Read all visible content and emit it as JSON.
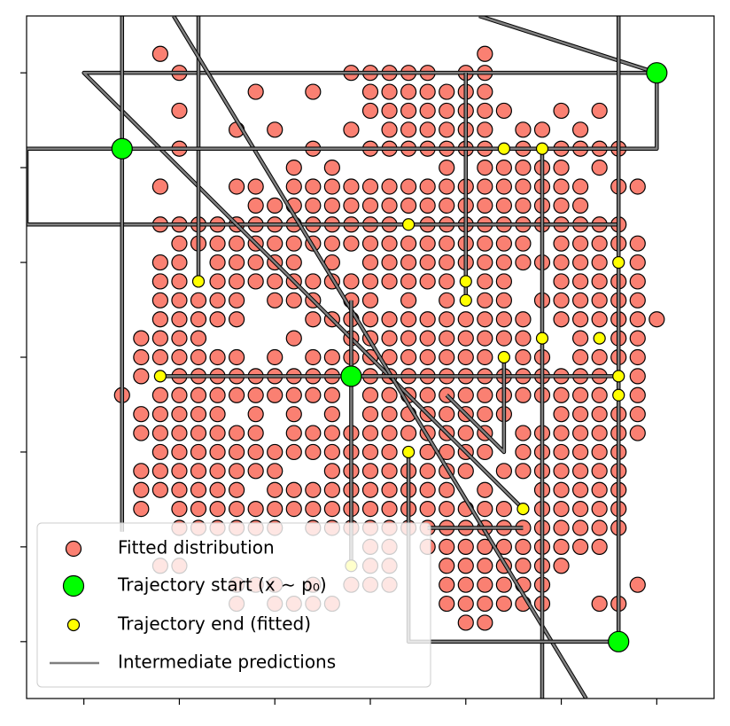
{
  "chart_data": {
    "type": "scatter",
    "xlim": [
      -3,
      33
    ],
    "ylim": [
      -3,
      33
    ],
    "xticks": [
      0,
      5,
      10,
      15,
      20,
      25,
      30
    ],
    "yticks": [
      0,
      5,
      10,
      15,
      20,
      25,
      30
    ],
    "legend": "lower left",
    "series": [
      {
        "name": "Fitted distribution",
        "color": "#fa8072",
        "x": [
          4,
          21,
          5,
          14,
          15,
          16,
          17,
          18,
          20,
          21,
          9,
          12,
          15,
          16,
          17,
          18,
          19,
          20,
          21,
          5,
          15,
          16,
          17,
          18,
          19,
          20,
          21,
          22,
          25,
          27,
          8,
          10,
          14,
          16,
          17,
          18,
          19,
          20,
          21,
          23,
          24,
          26,
          5,
          12,
          15,
          16,
          17,
          18,
          19,
          20,
          21,
          23,
          25,
          26,
          27,
          28,
          11,
          13,
          19,
          21,
          22,
          23,
          24,
          25,
          27,
          4,
          8,
          9,
          11,
          12,
          13,
          14,
          15,
          16,
          17,
          18,
          19,
          20,
          21,
          22,
          23,
          24,
          25,
          26,
          28,
          29,
          9,
          10,
          11,
          12,
          13,
          14,
          15,
          16,
          17,
          18,
          19,
          20,
          21,
          22,
          23,
          24,
          25,
          26,
          4,
          5,
          6,
          7,
          8,
          9,
          10,
          11,
          12,
          13,
          14,
          15,
          16,
          18,
          19,
          20,
          21,
          22,
          23,
          24,
          25,
          26,
          27,
          28,
          5,
          6,
          7,
          8,
          9,
          10,
          11,
          12,
          13,
          14,
          15,
          16,
          17,
          18,
          19,
          20,
          21,
          22,
          23,
          25,
          26,
          27,
          28,
          29,
          4,
          5,
          7,
          8,
          9,
          10,
          11,
          13,
          15,
          16,
          17,
          18,
          19,
          20,
          21,
          22,
          23,
          24,
          25,
          26,
          27,
          29,
          4,
          5,
          7,
          8,
          9,
          10,
          11,
          12,
          13,
          14,
          15,
          16,
          17,
          18,
          19,
          21,
          22,
          25,
          26,
          27,
          28,
          29,
          4,
          5,
          6,
          7,
          8,
          10,
          11,
          12,
          14,
          15,
          17,
          19,
          21,
          22,
          24,
          25,
          26,
          27,
          28,
          29,
          4,
          5,
          6,
          7,
          8,
          12,
          13,
          14,
          15,
          16,
          17,
          18,
          19,
          20,
          21,
          22,
          23,
          25,
          26,
          27,
          28,
          29,
          30,
          3,
          4,
          5,
          6,
          11,
          14,
          15,
          16,
          17,
          18,
          19,
          20,
          21,
          22,
          23,
          26,
          28,
          29,
          3,
          4,
          5,
          6,
          7,
          8,
          10,
          12,
          13,
          14,
          15,
          16,
          17,
          18,
          19,
          20,
          21,
          23,
          24,
          26,
          27,
          28,
          29,
          3,
          5,
          6,
          7,
          8,
          9,
          10,
          11,
          12,
          13,
          15,
          16,
          17,
          18,
          19,
          20,
          21,
          22,
          23,
          24,
          25,
          26,
          27,
          29,
          2,
          4,
          5,
          6,
          7,
          8,
          9,
          10,
          11,
          12,
          13,
          15,
          16,
          17,
          18,
          19,
          20,
          21,
          22,
          23,
          24,
          25,
          26,
          27,
          29,
          3,
          4,
          5,
          6,
          7,
          9,
          11,
          13,
          15,
          16,
          17,
          18,
          19,
          20,
          21,
          22,
          25,
          26,
          27,
          28,
          29,
          3,
          4,
          5,
          6,
          7,
          8,
          9,
          11,
          12,
          13,
          14,
          15,
          16,
          17,
          18,
          19,
          20,
          21,
          23,
          24,
          25,
          26,
          27,
          28,
          29,
          4,
          5,
          6,
          7,
          8,
          9,
          10,
          11,
          12,
          13,
          14,
          15,
          16,
          18,
          19,
          20,
          21,
          23,
          24,
          25,
          26,
          27,
          28,
          3,
          4,
          5,
          6,
          7,
          8,
          9,
          10,
          13,
          14,
          15,
          16,
          17,
          18,
          19,
          20,
          22,
          23,
          24,
          25,
          26,
          27,
          28,
          3,
          4,
          5,
          6,
          7,
          8,
          10,
          11,
          12,
          13,
          14,
          15,
          16,
          17,
          18,
          19,
          21,
          24,
          25,
          26,
          27,
          28,
          3,
          5,
          6,
          7,
          8,
          9,
          10,
          11,
          12,
          13,
          14,
          15,
          16,
          17,
          18,
          19,
          20,
          21,
          22,
          24,
          25,
          26,
          27,
          28,
          5,
          6,
          7,
          8,
          9,
          10,
          12,
          13,
          14,
          15,
          16,
          17,
          18,
          19,
          20,
          21,
          22,
          23,
          24,
          25,
          26,
          27,
          28,
          15,
          16,
          18,
          19,
          20,
          21,
          22,
          23,
          24,
          25,
          26,
          27,
          4,
          5,
          15,
          16,
          19,
          20,
          21,
          22,
          23,
          24,
          25,
          8,
          9,
          10,
          12,
          14,
          15,
          16,
          19,
          20,
          21,
          22,
          23,
          24,
          29,
          8,
          10,
          11,
          12,
          13,
          19,
          20,
          21,
          22,
          23,
          24,
          27,
          28,
          20,
          21
        ],
        "y": [
          31,
          31,
          30,
          30,
          30,
          30,
          30,
          30,
          30,
          30,
          29,
          29,
          29,
          29,
          29,
          29,
          29,
          29,
          29,
          28,
          28,
          28,
          28,
          28,
          28,
          28,
          28,
          28,
          28,
          28,
          27,
          27,
          27,
          27,
          27,
          27,
          27,
          27,
          27,
          27,
          27,
          27,
          26,
          26,
          26,
          26,
          26,
          26,
          26,
          26,
          26,
          26,
          26,
          26,
          26,
          26,
          25,
          25,
          25,
          25,
          25,
          25,
          25,
          25,
          25,
          24,
          24,
          24,
          24,
          24,
          24,
          24,
          24,
          24,
          24,
          24,
          24,
          24,
          24,
          24,
          24,
          24,
          24,
          24,
          24,
          24,
          23,
          23,
          23,
          23,
          23,
          23,
          23,
          23,
          23,
          23,
          23,
          23,
          23,
          23,
          23,
          23,
          23,
          23,
          22,
          22,
          22,
          22,
          22,
          22,
          22,
          22,
          22,
          22,
          22,
          22,
          22,
          22,
          22,
          22,
          22,
          22,
          22,
          22,
          22,
          22,
          22,
          22,
          21,
          21,
          21,
          21,
          21,
          21,
          21,
          21,
          21,
          21,
          21,
          21,
          21,
          21,
          21,
          21,
          21,
          21,
          21,
          21,
          21,
          21,
          21,
          21,
          20,
          20,
          20,
          20,
          20,
          20,
          20,
          20,
          20,
          20,
          20,
          20,
          20,
          20,
          20,
          20,
          20,
          20,
          20,
          20,
          20,
          20,
          19,
          19,
          19,
          19,
          19,
          19,
          19,
          19,
          19,
          19,
          19,
          19,
          19,
          19,
          19,
          19,
          19,
          19,
          19,
          19,
          19,
          19,
          18,
          18,
          18,
          18,
          18,
          18,
          18,
          18,
          18,
          18,
          18,
          18,
          18,
          18,
          18,
          18,
          18,
          18,
          18,
          18,
          17,
          17,
          17,
          17,
          17,
          17,
          17,
          17,
          17,
          17,
          17,
          17,
          17,
          17,
          17,
          17,
          17,
          17,
          17,
          17,
          17,
          17,
          17,
          16,
          16,
          16,
          16,
          16,
          16,
          16,
          16,
          16,
          16,
          16,
          16,
          16,
          16,
          16,
          16,
          16,
          16,
          15,
          15,
          15,
          15,
          15,
          15,
          15,
          15,
          15,
          15,
          15,
          15,
          15,
          15,
          15,
          15,
          15,
          15,
          15,
          15,
          15,
          15,
          15,
          14,
          14,
          14,
          14,
          14,
          14,
          14,
          14,
          14,
          14,
          14,
          14,
          14,
          14,
          14,
          14,
          14,
          14,
          14,
          14,
          14,
          14,
          14,
          14,
          13,
          13,
          13,
          13,
          13,
          13,
          13,
          13,
          13,
          13,
          13,
          13,
          13,
          13,
          13,
          13,
          13,
          13,
          13,
          13,
          13,
          13,
          13,
          13,
          13,
          12,
          12,
          12,
          12,
          12,
          12,
          12,
          12,
          12,
          12,
          12,
          12,
          12,
          12,
          12,
          12,
          12,
          12,
          12,
          12,
          12,
          11,
          11,
          11,
          11,
          11,
          11,
          11,
          11,
          11,
          11,
          11,
          11,
          11,
          11,
          11,
          11,
          11,
          11,
          11,
          11,
          11,
          11,
          11,
          11,
          11,
          10,
          10,
          10,
          10,
          10,
          10,
          10,
          10,
          10,
          10,
          10,
          10,
          10,
          10,
          10,
          10,
          10,
          10,
          10,
          10,
          10,
          10,
          10,
          9,
          9,
          9,
          9,
          9,
          9,
          9,
          9,
          9,
          9,
          9,
          9,
          9,
          9,
          9,
          9,
          9,
          9,
          9,
          9,
          9,
          9,
          9,
          8,
          8,
          8,
          8,
          8,
          8,
          8,
          8,
          8,
          8,
          8,
          8,
          8,
          8,
          8,
          8,
          8,
          8,
          8,
          8,
          8,
          8,
          7,
          7,
          7,
          7,
          7,
          7,
          7,
          7,
          7,
          7,
          7,
          7,
          7,
          7,
          7,
          7,
          7,
          7,
          7,
          7,
          7,
          7,
          7,
          7,
          6,
          6,
          6,
          6,
          6,
          6,
          6,
          6,
          6,
          6,
          6,
          6,
          6,
          6,
          6,
          6,
          6,
          6,
          6,
          6,
          6,
          6,
          6,
          5,
          5,
          5,
          5,
          5,
          5,
          5,
          5,
          5,
          5,
          5,
          5,
          4,
          4,
          4,
          4,
          4,
          4,
          4,
          4,
          4,
          4,
          4,
          3,
          3,
          3,
          3,
          3,
          3,
          3,
          3,
          3,
          3,
          3,
          3,
          3,
          3,
          2,
          2,
          2,
          2,
          2,
          2,
          2,
          2,
          2,
          2,
          2,
          2,
          2,
          1,
          1
        ]
      },
      {
        "name": "Trajectory start (x ∼ p₀)",
        "color": "#00ff00",
        "x": [
          30,
          2,
          14,
          28
        ],
        "y": [
          30,
          26,
          14,
          0
        ]
      },
      {
        "name": "Trajectory end (fitted)",
        "color": "#ffff00",
        "x": [
          22,
          24,
          17,
          28,
          6,
          20,
          20,
          24,
          27,
          22,
          4,
          28,
          28,
          17,
          23,
          14
        ],
        "y": [
          26,
          26,
          22,
          20,
          19,
          19,
          18,
          16,
          16,
          15,
          14,
          14,
          13,
          10,
          7,
          4
        ]
      },
      {
        "name": "Intermediate predictions",
        "color": "#808080",
        "paths": [
          {
            "x": [
              30,
              30,
              -3,
              -3,
              28
            ],
            "y": [
              30,
              26,
              26,
              22,
              22
            ]
          },
          {
            "x": [
              30,
              0,
              23
            ],
            "y": [
              30,
              30,
              7
            ]
          },
          {
            "x": [
              20.7,
              30
            ],
            "y": [
              33,
              30
            ]
          },
          {
            "x": [
              2,
              2
            ],
            "y": [
              33,
              5.8
            ]
          },
          {
            "x": [
              6,
              6
            ],
            "y": [
              33,
              19
            ]
          },
          {
            "x": [
              4.7,
              26.3
            ],
            "y": [
              33,
              -3
            ]
          },
          {
            "x": [
              28,
              28
            ],
            "y": [
              33,
              0
            ]
          },
          {
            "x": [
              4,
              28
            ],
            "y": [
              14,
              14
            ]
          },
          {
            "x": [
              14,
              14
            ],
            "y": [
              18,
              4
            ]
          },
          {
            "x": [
              20,
              20
            ],
            "y": [
              30,
              18
            ]
          },
          {
            "x": [
              24,
              24
            ],
            "y": [
              26,
              -3
            ]
          },
          {
            "x": [
              17,
              17,
              28
            ],
            "y": [
              10,
              0,
              0
            ]
          },
          {
            "x": [
              22,
              22,
              19
            ],
            "y": [
              15,
              10,
              13
            ]
          },
          {
            "x": [
              18,
              23
            ],
            "y": [
              6,
              6
            ]
          },
          {
            "x": [
              2,
              24
            ],
            "y": [
              26,
              26
            ]
          }
        ]
      }
    ]
  }
}
